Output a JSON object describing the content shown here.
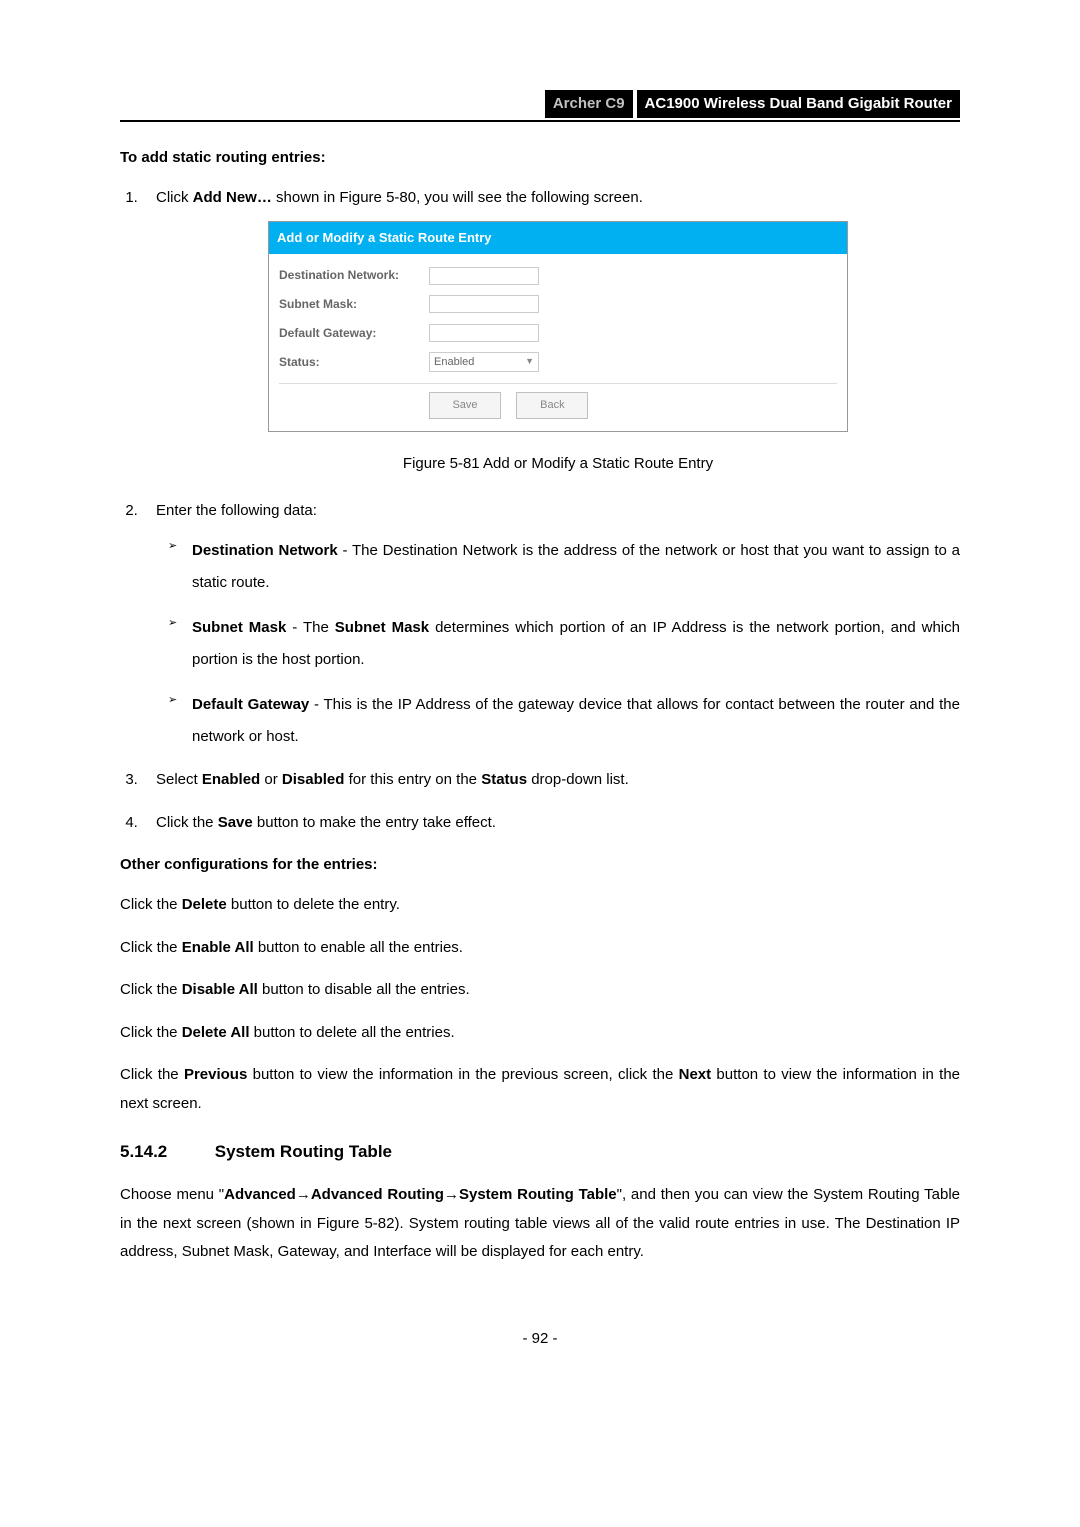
{
  "header": {
    "model": "Archer C9",
    "product": "AC1900 Wireless Dual Band Gigabit Router"
  },
  "heading1": "To add static routing entries:",
  "list1": {
    "item1_prefix": "Click ",
    "item1_bold": "Add New…",
    "item1_suffix": " shown in Figure 5-80, you will see the following screen."
  },
  "screenshot": {
    "title": "Add or Modify a Static Route Entry",
    "labels": {
      "dest": "Destination Network:",
      "subnet": "Subnet Mask:",
      "gateway": "Default Gateway:",
      "status": "Status:"
    },
    "status_value": "Enabled",
    "buttons": {
      "save": "Save",
      "back": "Back"
    }
  },
  "figure_caption": "Figure 5-81 Add or Modify a Static Route Entry",
  "item2_intro": "Enter the following data:",
  "sub_items": {
    "dest": {
      "bold": "Destination Network",
      "text": " - The Destination Network is the address of the network or host that you want to assign to a static route."
    },
    "subnet": {
      "bold1": "Subnet Mask",
      "mid": " - The ",
      "bold2": "Subnet Mask",
      "text": " determines which portion of an IP Address is the network portion, and which portion is the host portion."
    },
    "gateway": {
      "bold": "Default Gateway",
      "text": " - This is the IP Address of the gateway device that allows for contact between the router and the network or host."
    }
  },
  "item3": {
    "p1": "Select ",
    "b1": "Enabled",
    "p2": " or ",
    "b2": "Disabled",
    "p3": " for this entry on the ",
    "b3": "Status",
    "p4": " drop-down list."
  },
  "item4": {
    "p1": "Click the ",
    "b1": "Save",
    "p2": " button to make the entry take effect."
  },
  "heading2": "Other configurations for the entries:",
  "paras": {
    "delete": {
      "p1": "Click the ",
      "b": "Delete",
      "p2": " button to delete the entry."
    },
    "enable": {
      "p1": "Click the ",
      "b": "Enable All",
      "p2": " button to enable all the entries."
    },
    "disable": {
      "p1": "Click the ",
      "b": "Disable All",
      "p2": " button to disable all the entries."
    },
    "deleteall": {
      "p1": "Click the ",
      "b": "Delete All",
      "p2": " button to delete all the entries."
    },
    "prevnext": {
      "p1": "Click the ",
      "b1": "Previous",
      "p2": " button to view the information in the previous screen, click the ",
      "b2": "Next",
      "p3": " button to view the information in the next screen."
    }
  },
  "section": {
    "number": "5.14.2",
    "title": "System Routing Table"
  },
  "section_para": {
    "p1": "Choose menu \"",
    "b1": "Advanced",
    "arrow1": "→",
    "b2": "Advanced Routing",
    "arrow2": "→",
    "b3": "System Routing Table",
    "p2": "\", and then you can view the System Routing Table in the next screen (shown in Figure 5-82). System routing table views all of the valid route entries in use. The Destination IP address, Subnet Mask, Gateway, and Interface will be displayed for each entry."
  },
  "page_number": "- 92 -"
}
